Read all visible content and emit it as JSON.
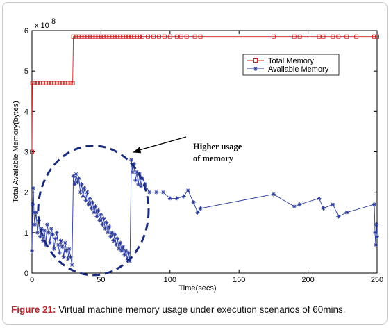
{
  "chart_data": {
    "type": "line",
    "xlabel": "Time(secs)",
    "ylabel": "Total Available Memory(bytes)",
    "xlim": [
      0,
      250
    ],
    "ylim": [
      0,
      6
    ],
    "y_exponent": "x 10",
    "y_exponent_power": "8",
    "x_ticks": [
      "0",
      "50",
      "100",
      "150",
      "200",
      "250"
    ],
    "y_ticks": [
      "0",
      "1",
      "2",
      "3",
      "4",
      "5",
      "6"
    ],
    "legend_position": "top-right",
    "grid": false,
    "series": [
      {
        "name": "Total Memory",
        "marker": "square",
        "color": "#cc2020",
        "points": [
          [
            0,
            3.0
          ],
          [
            0.3,
            4.7
          ],
          [
            2,
            4.7
          ],
          [
            4,
            4.7
          ],
          [
            6,
            4.7
          ],
          [
            8,
            4.7
          ],
          [
            10,
            4.7
          ],
          [
            12,
            4.7
          ],
          [
            14,
            4.7
          ],
          [
            16,
            4.7
          ],
          [
            18,
            4.7
          ],
          [
            20,
            4.7
          ],
          [
            22,
            4.7
          ],
          [
            24,
            4.7
          ],
          [
            26,
            4.7
          ],
          [
            28,
            4.7
          ],
          [
            29.5,
            4.7
          ],
          [
            30,
            5.85
          ],
          [
            32,
            5.85
          ],
          [
            34,
            5.85
          ],
          [
            36,
            5.85
          ],
          [
            38,
            5.85
          ],
          [
            40,
            5.85
          ],
          [
            42,
            5.85
          ],
          [
            44,
            5.85
          ],
          [
            46,
            5.85
          ],
          [
            48,
            5.85
          ],
          [
            50,
            5.85
          ],
          [
            52,
            5.85
          ],
          [
            54,
            5.85
          ],
          [
            56,
            5.85
          ],
          [
            58,
            5.85
          ],
          [
            60,
            5.85
          ],
          [
            62,
            5.85
          ],
          [
            64,
            5.85
          ],
          [
            66,
            5.85
          ],
          [
            68,
            5.85
          ],
          [
            70,
            5.85
          ],
          [
            72,
            5.85
          ],
          [
            74,
            5.85
          ],
          [
            76,
            5.85
          ],
          [
            78,
            5.85
          ],
          [
            80,
            5.85
          ],
          [
            84,
            5.85
          ],
          [
            88,
            5.85
          ],
          [
            92,
            5.85
          ],
          [
            96,
            5.85
          ],
          [
            100,
            5.85
          ],
          [
            105,
            5.85
          ],
          [
            108,
            5.85
          ],
          [
            112,
            5.85
          ],
          [
            118,
            5.85
          ],
          [
            122,
            5.85
          ],
          [
            175,
            5.85
          ],
          [
            190,
            5.85
          ],
          [
            194,
            5.85
          ],
          [
            208,
            5.85
          ],
          [
            211,
            5.85
          ],
          [
            218,
            5.85
          ],
          [
            222,
            5.85
          ],
          [
            228,
            5.85
          ],
          [
            235,
            5.85
          ],
          [
            248,
            5.85
          ],
          [
            250,
            5.85
          ]
        ]
      },
      {
        "name": "Available Memory",
        "marker": "star",
        "color": "#2a3a9a",
        "points": [
          [
            0,
            0.55
          ],
          [
            0.5,
            1.7
          ],
          [
            1,
            2.1
          ],
          [
            1.5,
            1.5
          ],
          [
            2,
            1.2
          ],
          [
            3,
            1.5
          ],
          [
            4,
            1.0
          ],
          [
            5,
            1.3
          ],
          [
            6,
            0.9
          ],
          [
            7,
            1.1
          ],
          [
            8,
            0.8
          ],
          [
            9,
            1.05
          ],
          [
            10,
            0.7
          ],
          [
            11,
            1.2
          ],
          [
            12,
            1.0
          ],
          [
            13,
            0.75
          ],
          [
            14,
            1.1
          ],
          [
            15,
            0.95
          ],
          [
            16,
            0.6
          ],
          [
            17,
            0.85
          ],
          [
            18,
            1.0
          ],
          [
            19,
            0.7
          ],
          [
            20,
            0.5
          ],
          [
            21,
            0.8
          ],
          [
            22,
            0.65
          ],
          [
            23,
            0.4
          ],
          [
            24,
            0.75
          ],
          [
            25,
            0.55
          ],
          [
            26,
            0.35
          ],
          [
            27,
            0.6
          ],
          [
            28,
            0.4
          ],
          [
            29,
            0.2
          ],
          [
            30,
            2.4
          ],
          [
            31,
            2.2
          ],
          [
            32,
            2.45
          ],
          [
            33,
            2.25
          ],
          [
            34,
            2.35
          ],
          [
            35,
            2.0
          ],
          [
            36,
            2.2
          ],
          [
            37,
            1.9
          ],
          [
            38,
            2.1
          ],
          [
            39,
            1.8
          ],
          [
            40,
            2.0
          ],
          [
            41,
            1.7
          ],
          [
            42,
            1.85
          ],
          [
            43,
            1.6
          ],
          [
            44,
            1.75
          ],
          [
            45,
            1.5
          ],
          [
            46,
            1.65
          ],
          [
            47,
            1.4
          ],
          [
            48,
            1.55
          ],
          [
            49,
            1.3
          ],
          [
            50,
            1.45
          ],
          [
            51,
            1.2
          ],
          [
            52,
            1.35
          ],
          [
            53,
            1.1
          ],
          [
            54,
            1.25
          ],
          [
            55,
            1.0
          ],
          [
            56,
            1.15
          ],
          [
            57,
            0.9
          ],
          [
            58,
            1.0
          ],
          [
            59,
            0.8
          ],
          [
            60,
            0.95
          ],
          [
            61,
            0.7
          ],
          [
            62,
            0.85
          ],
          [
            63,
            0.6
          ],
          [
            64,
            0.75
          ],
          [
            65,
            0.55
          ],
          [
            66,
            0.65
          ],
          [
            67,
            0.45
          ],
          [
            68,
            0.55
          ],
          [
            69,
            0.35
          ],
          [
            70,
            0.5
          ],
          [
            71,
            0.3
          ],
          [
            72,
            2.8
          ],
          [
            73,
            2.5
          ],
          [
            74,
            2.7
          ],
          [
            75,
            2.3
          ],
          [
            76,
            2.5
          ],
          [
            77,
            2.2
          ],
          [
            78,
            2.45
          ],
          [
            79,
            2.15
          ],
          [
            80,
            2.35
          ],
          [
            82,
            2.2
          ],
          [
            85,
            2.0
          ],
          [
            90,
            2.0
          ],
          [
            95,
            2.0
          ],
          [
            100,
            1.85
          ],
          [
            105,
            1.85
          ],
          [
            110,
            1.9
          ],
          [
            113,
            2.05
          ],
          [
            117,
            1.75
          ],
          [
            120,
            1.5
          ],
          [
            122,
            1.6
          ],
          [
            175,
            1.95
          ],
          [
            190,
            1.65
          ],
          [
            194,
            1.7
          ],
          [
            208,
            1.85
          ],
          [
            211,
            1.6
          ],
          [
            218,
            1.7
          ],
          [
            222,
            1.4
          ],
          [
            228,
            1.5
          ],
          [
            248,
            1.7
          ],
          [
            248.5,
            1.0
          ],
          [
            249,
            0.7
          ],
          [
            249.5,
            1.2
          ],
          [
            250,
            0.9
          ]
        ]
      }
    ],
    "annotations": [
      {
        "text_lines": [
          "Higher usage",
          "of memory"
        ],
        "arrow_to": [
          72,
          2.95
        ]
      },
      {
        "shape": "dashed-circle",
        "center": [
          44.5,
          1.55
        ],
        "radius_x": 40,
        "radius_y": 1.6
      }
    ]
  },
  "caption": {
    "label": "Figure 21:",
    "text": " Virtual machine memory usage under execution scenarios of 60mins."
  },
  "colors": {
    "total_memory": "#cc2020",
    "available_memory": "#2a3a9a",
    "circle": "#1a2a7a",
    "caption_label": "#b5272d"
  }
}
